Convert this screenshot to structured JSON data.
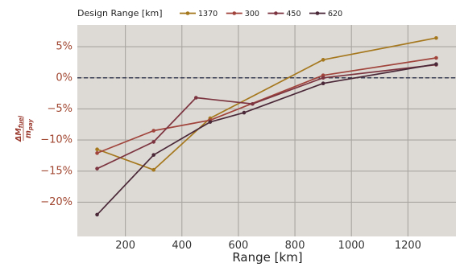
{
  "chart_data": {
    "type": "line",
    "legend": {
      "title": "Design Range [km]",
      "placement": "top"
    },
    "xlabel": "Range [km]",
    "ylabel_main": "ΔM",
    "ylabel_main_sub": "fuel",
    "ylabel_den": "m",
    "ylabel_den_sub": "pay",
    "x_ticks": [
      "200",
      "400",
      "600",
      "800",
      "1000",
      "1200"
    ],
    "x_tick_values": [
      200,
      400,
      600,
      800,
      1000,
      1200
    ],
    "y_ticks": [
      "5%",
      "0%",
      "−5%",
      "−10%",
      "−15%",
      "−20%"
    ],
    "y_tick_values": [
      5,
      0,
      -5,
      -10,
      -15,
      -20
    ],
    "xlim": [
      30,
      1370
    ],
    "ylim": [
      -25.5,
      8.5
    ],
    "grid": true,
    "reference_line_y": 0,
    "colors": {
      "background": "#ddd9d4",
      "grid": "#a9a6a2",
      "ytick": "#a0452f",
      "ylabel": "#9b3b30",
      "zero_line": "#3b3f55"
    },
    "series": [
      {
        "name": "1370",
        "color": "#a5781e",
        "x": [
          100,
          300,
          500,
          900,
          1300
        ],
        "y": [
          -11.5,
          -14.8,
          -6.5,
          2.9,
          6.4
        ]
      },
      {
        "name": "300",
        "color": "#a0443c",
        "x": [
          100,
          300,
          500,
          900,
          1300
        ],
        "y": [
          -12.1,
          -8.5,
          -6.8,
          0.4,
          3.2
        ]
      },
      {
        "name": "450",
        "color": "#7c3540",
        "x": [
          100,
          300,
          450,
          650,
          900,
          1300
        ],
        "y": [
          -14.6,
          -10.3,
          -3.2,
          -4.2,
          0.0,
          2.1
        ]
      },
      {
        "name": "620",
        "color": "#4a2838",
        "x": [
          100,
          300,
          500,
          620,
          900,
          1300
        ],
        "y": [
          -22.0,
          -12.4,
          -7.1,
          -5.6,
          -0.9,
          2.2
        ]
      }
    ]
  }
}
